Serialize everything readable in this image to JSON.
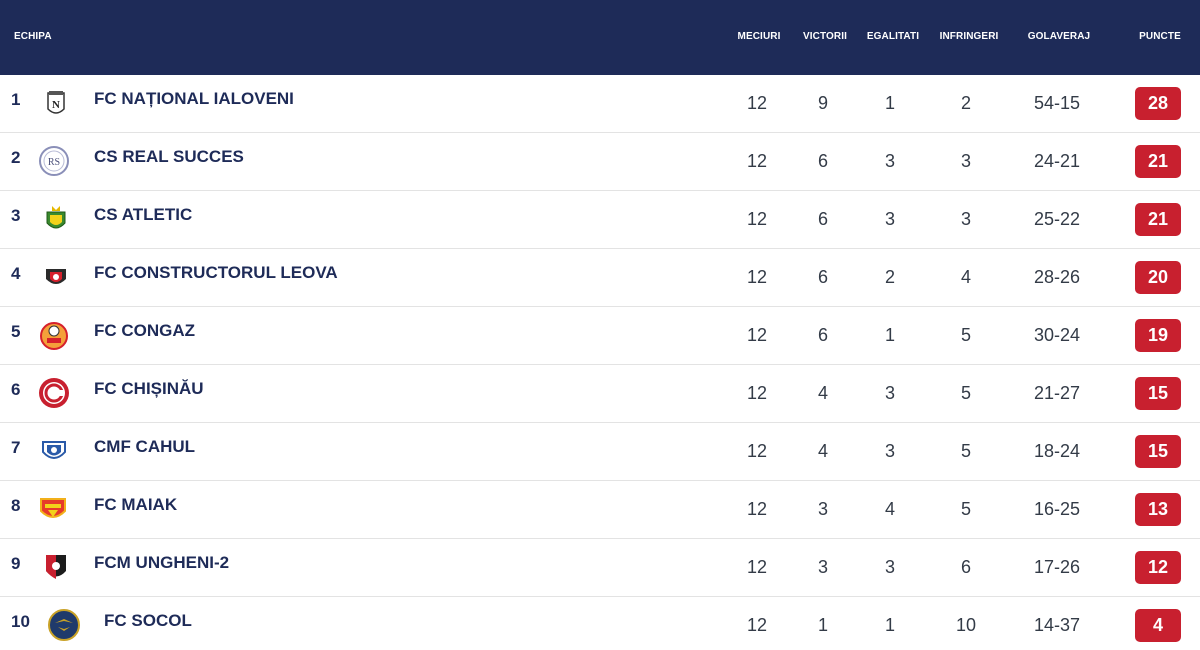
{
  "header": {
    "team": "ECHIPA",
    "played": "MECIURI",
    "wins": "VICTORII",
    "draws": "EGALITATI",
    "losses": "INFRINGERI",
    "goals": "GOLAVERAJ",
    "points": "PUNCTE"
  },
  "colors": {
    "header_bg": "#1e2b58",
    "points_badge": "#c8202f"
  },
  "rows": [
    {
      "pos": "1",
      "team": "FC NAȚIONAL IALOVENI",
      "played": "12",
      "wins": "9",
      "draws": "1",
      "losses": "2",
      "goals": "54-15",
      "points": "28",
      "logo": "nationa-ialoveni-crest-icon"
    },
    {
      "pos": "2",
      "team": "CS REAL SUCCES",
      "played": "12",
      "wins": "6",
      "draws": "3",
      "losses": "3",
      "goals": "24-21",
      "points": "21",
      "logo": "real-succes-crest-icon"
    },
    {
      "pos": "3",
      "team": "CS ATLETIC",
      "played": "12",
      "wins": "6",
      "draws": "3",
      "losses": "3",
      "goals": "25-22",
      "points": "21",
      "logo": "atletic-crest-icon"
    },
    {
      "pos": "4",
      "team": "FC CONSTRUCTORUL LEOVA",
      "played": "12",
      "wins": "6",
      "draws": "2",
      "losses": "4",
      "goals": "28-26",
      "points": "20",
      "logo": "constructorul-crest-icon"
    },
    {
      "pos": "5",
      "team": "FC CONGAZ",
      "played": "12",
      "wins": "6",
      "draws": "1",
      "losses": "5",
      "goals": "30-24",
      "points": "19",
      "logo": "congaz-crest-icon"
    },
    {
      "pos": "6",
      "team": "FC CHIȘINĂU",
      "played": "12",
      "wins": "4",
      "draws": "3",
      "losses": "5",
      "goals": "21-27",
      "points": "15",
      "logo": "chisinau-crest-icon"
    },
    {
      "pos": "7",
      "team": "CMF CAHUL",
      "played": "12",
      "wins": "4",
      "draws": "3",
      "losses": "5",
      "goals": "18-24",
      "points": "15",
      "logo": "cahul-crest-icon"
    },
    {
      "pos": "8",
      "team": "FC MAIAK",
      "played": "12",
      "wins": "3",
      "draws": "4",
      "losses": "5",
      "goals": "16-25",
      "points": "13",
      "logo": "maiak-crest-icon"
    },
    {
      "pos": "9",
      "team": "FCM UNGHENI-2",
      "played": "12",
      "wins": "3",
      "draws": "3",
      "losses": "6",
      "goals": "17-26",
      "points": "12",
      "logo": "ungheni-crest-icon"
    },
    {
      "pos": "10",
      "team": "FC SOCOL",
      "played": "12",
      "wins": "1",
      "draws": "1",
      "losses": "10",
      "goals": "14-37",
      "points": "4",
      "logo": "socol-crest-icon"
    }
  ]
}
